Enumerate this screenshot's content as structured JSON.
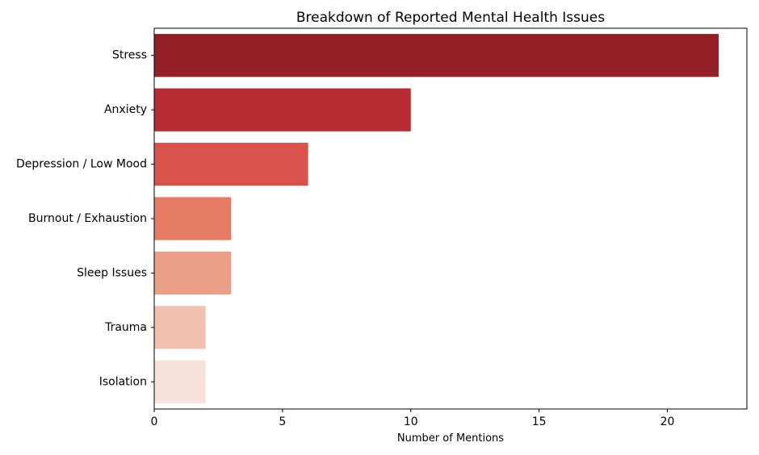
{
  "chart_data": {
    "type": "bar",
    "orientation": "horizontal",
    "title": "Breakdown of Reported Mental Health Issues",
    "xlabel": "Number of Mentions",
    "ylabel": "",
    "categories": [
      "Stress",
      "Anxiety",
      "Depression / Low Mood",
      "Burnout / Exhaustion",
      "Sleep Issues",
      "Trauma",
      "Isolation"
    ],
    "values": [
      22,
      10,
      6,
      3,
      3,
      2,
      2
    ],
    "xlim": [
      0,
      23.1
    ],
    "xticks": [
      0,
      5,
      10,
      15,
      20
    ],
    "colors": [
      "#941f26",
      "#b82b32",
      "#d9534a",
      "#e57b63",
      "#ec9f87",
      "#f1c0ae",
      "#f8e1d9"
    ],
    "grid": false,
    "legend": "none"
  }
}
